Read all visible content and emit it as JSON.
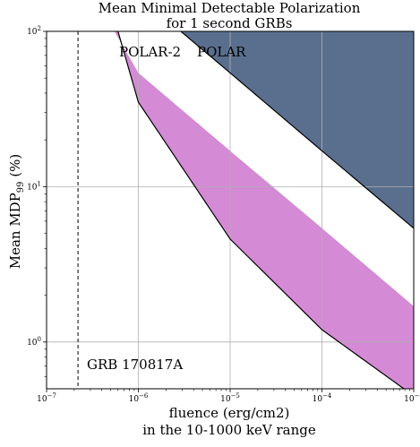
{
  "chart_data": {
    "type": "area",
    "title": [
      "Mean Minimal Detectable Polarization",
      "for 1 second GRBs"
    ],
    "xlabel": [
      "fluence (erg/cm2)",
      "in the 10-1000 keV range"
    ],
    "ylabel": {
      "text": "Mean MDP",
      "subscript": "99",
      "suffix": " (%)"
    },
    "x_scale": "log",
    "y_scale": "log",
    "xlim": [
      1e-07,
      0.001
    ],
    "ylim": [
      0.5,
      100
    ],
    "x_ticks": [
      {
        "value": 1e-07,
        "base": "10",
        "exp": "−7"
      },
      {
        "value": 1e-06,
        "base": "10",
        "exp": "−6"
      },
      {
        "value": 1e-05,
        "base": "10",
        "exp": "−5"
      },
      {
        "value": 0.0001,
        "base": "10",
        "exp": "−4"
      },
      {
        "value": 0.001,
        "base": "10",
        "exp": "−3"
      }
    ],
    "y_ticks": [
      {
        "value": 1,
        "base": "10",
        "exp": "0"
      },
      {
        "value": 10,
        "base": "10",
        "exp": "1"
      },
      {
        "value": 100,
        "base": "10",
        "exp": "2"
      }
    ],
    "grid": true,
    "series": [
      {
        "name": "POLAR",
        "color": "#5a6f8e",
        "x": [
          2.9e-06,
          1e-05,
          0.0001,
          0.001
        ],
        "y": [
          100,
          54,
          17,
          5.4
        ]
      },
      {
        "name": "POLAR-2",
        "color": "#d48ad4",
        "x": [
          5.5e-07,
          1e-06,
          1e-05,
          0.0001,
          0.001
        ],
        "y": [
          100,
          54,
          17,
          5.4,
          1.7
        ]
      }
    ],
    "band_lower_curve": {
      "x": [
        6e-07,
        1e-06,
        1e-05,
        0.0001,
        0.001
      ],
      "y": [
        100,
        35,
        4.6,
        1.2,
        0.45
      ]
    },
    "vline": {
      "x": 2.2e-07,
      "style": "dashed",
      "label": "GRB 170817A"
    }
  }
}
